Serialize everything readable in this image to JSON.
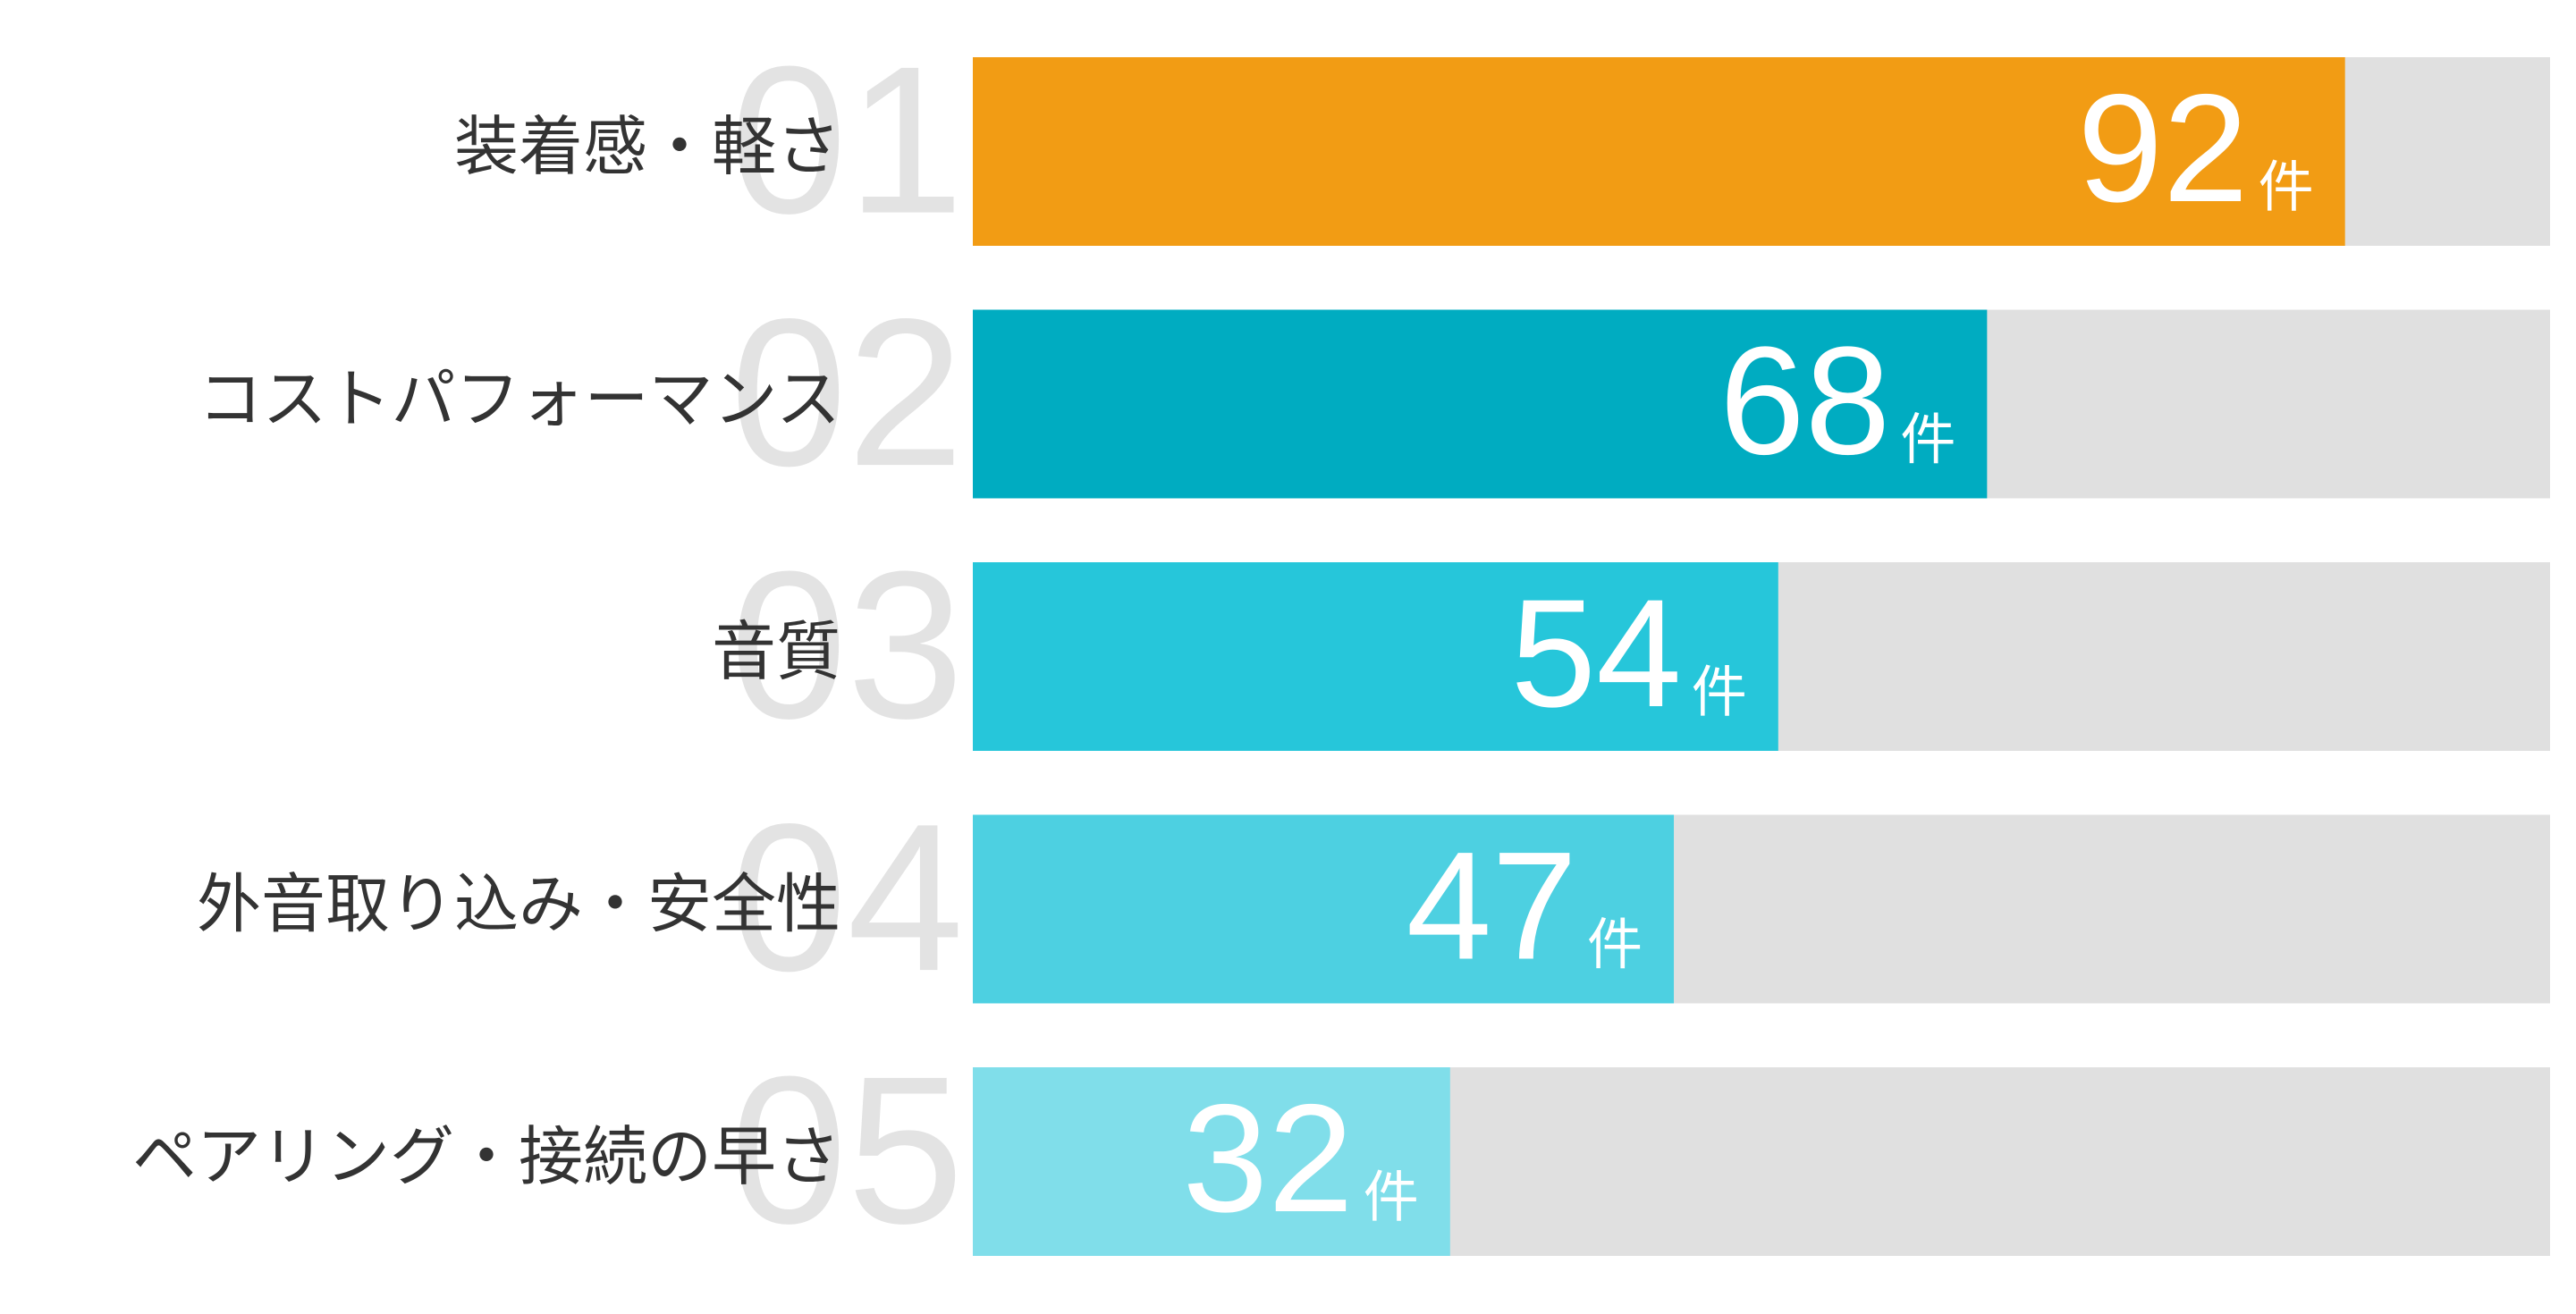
{
  "chart_data": {
    "type": "bar",
    "ranks": [
      "01",
      "02",
      "03",
      "04",
      "05"
    ],
    "categories": [
      "装着感・軽さ",
      "コストパフォーマンス",
      "音質",
      "外音取り込み・安全性",
      "ペアリング・接続の早さ"
    ],
    "values": [
      92,
      68,
      54,
      47,
      32
    ],
    "unit": "件",
    "colors": [
      "#f29c14",
      "#00acc1",
      "#26c6da",
      "#4dd0e1",
      "#80deea"
    ],
    "track_color": "#e0e0e0"
  }
}
